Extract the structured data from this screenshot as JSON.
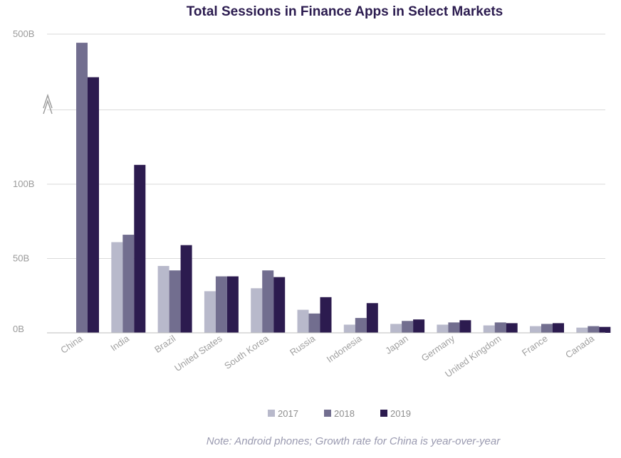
{
  "chart_data": {
    "type": "bar",
    "title": "Total Sessions in Finance Apps in Select Markets",
    "categories": [
      "China",
      "India",
      "Brazil",
      "United States",
      "South Korea",
      "Russia",
      "Indonesia",
      "Japan",
      "Germany",
      "United Kingdom",
      "France",
      "Canada"
    ],
    "y_ticks": [
      {
        "label": "0B",
        "value": 0
      },
      {
        "label": "50B",
        "value": 50
      },
      {
        "label": "100B",
        "value": 100
      },
      {
        "label": "",
        "value": 150
      },
      {
        "label": "500B",
        "value": 500
      }
    ],
    "y_axis_note": "axis is broken between 100B and 500B",
    "series": [
      {
        "name": "2017",
        "color": "#b8b9cb",
        "values": [
          null,
          61,
          45,
          28,
          30,
          15.5,
          5.5,
          6,
          5.5,
          5,
          4.5,
          3.5
        ]
      },
      {
        "name": "2018",
        "color": "#726e8f",
        "values": [
          460,
          66,
          42,
          38,
          42,
          13,
          10,
          8,
          7,
          7,
          6,
          4.5
        ]
      },
      {
        "name": "2019",
        "color": "#2c1b4f",
        "values": [
          300,
          113,
          59,
          38,
          37.5,
          24,
          20,
          9,
          8.5,
          6.5,
          6.5,
          4
        ]
      }
    ],
    "legend_position": "bottom-center",
    "grid": true
  },
  "note": "Note: Android phones; Growth rate for China is year-over-year"
}
